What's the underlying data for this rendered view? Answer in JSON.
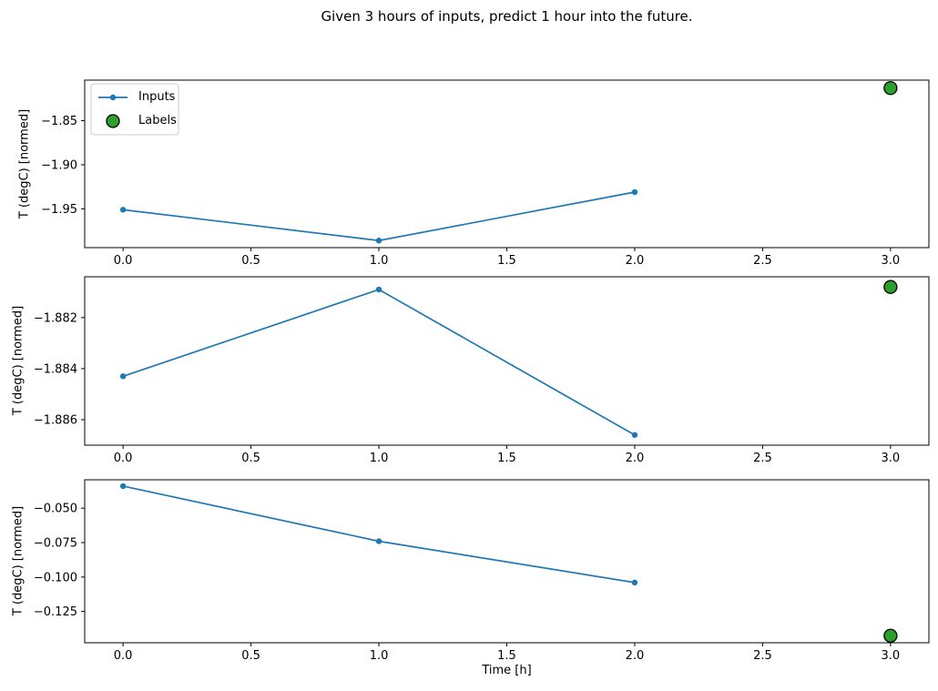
{
  "figure": {
    "title": "Given 3 hours of inputs, predict 1 hour into the future.",
    "xlabel": "Time [h]",
    "background_color": "#ffffff",
    "spine_color": "#000000",
    "text_color": "#000000"
  },
  "legend": {
    "position": "upper left",
    "border_color": "#cccccc",
    "items": [
      {
        "label": "Inputs",
        "marker": "line-with-dot",
        "color": "#1f77b4"
      },
      {
        "label": "Labels",
        "marker": "filled-circle",
        "color": "#2ca02c",
        "edge_color": "#000000"
      }
    ]
  },
  "chart_data": [
    {
      "type": "line",
      "ylabel": "T (degC) [normed]",
      "grid": false,
      "legend": true,
      "xlim": [
        -0.15,
        3.15
      ],
      "ylim": [
        -1.994,
        -1.804
      ],
      "xticks": [
        0.0,
        0.5,
        1.0,
        1.5,
        2.0,
        2.5,
        3.0
      ],
      "xtick_labels": [
        "0.0",
        "0.5",
        "1.0",
        "1.5",
        "2.0",
        "2.5",
        "3.0"
      ],
      "yticks": [
        -1.85,
        -1.9,
        -1.95
      ],
      "ytick_labels": [
        "−1.85",
        "−1.90",
        "−1.95"
      ],
      "series": [
        {
          "name": "Inputs",
          "style": "line+marker",
          "color": "#1f77b4",
          "x": [
            0.0,
            1.0,
            2.0
          ],
          "values": [
            -1.951,
            -1.986,
            -1.931
          ]
        },
        {
          "name": "Labels",
          "style": "scatter",
          "color": "#2ca02c",
          "edge_color": "#000000",
          "x": [
            3.0
          ],
          "values": [
            -1.813
          ]
        }
      ]
    },
    {
      "type": "line",
      "ylabel": "T (degC) [normed]",
      "grid": false,
      "legend": false,
      "xlim": [
        -0.15,
        3.15
      ],
      "ylim": [
        -1.887,
        -1.8804
      ],
      "xticks": [
        0.0,
        0.5,
        1.0,
        1.5,
        2.0,
        2.5,
        3.0
      ],
      "xtick_labels": [
        "0.0",
        "0.5",
        "1.0",
        "1.5",
        "2.0",
        "2.5",
        "3.0"
      ],
      "yticks": [
        -1.882,
        -1.884,
        -1.886
      ],
      "ytick_labels": [
        "−1.882",
        "−1.884",
        "−1.886"
      ],
      "series": [
        {
          "name": "Inputs",
          "style": "line+marker",
          "color": "#1f77b4",
          "x": [
            0.0,
            1.0,
            2.0
          ],
          "values": [
            -1.8843,
            -1.8809,
            -1.8866
          ]
        },
        {
          "name": "Labels",
          "style": "scatter",
          "color": "#2ca02c",
          "edge_color": "#000000",
          "x": [
            3.0
          ],
          "values": [
            -1.8808
          ]
        }
      ]
    },
    {
      "type": "line",
      "ylabel": "T (degC) [normed]",
      "xlabel": "Time [h]",
      "grid": false,
      "legend": false,
      "xlim": [
        -0.15,
        3.15
      ],
      "ylim": [
        -0.1477,
        -0.0294
      ],
      "xticks": [
        0.0,
        0.5,
        1.0,
        1.5,
        2.0,
        2.5,
        3.0
      ],
      "xtick_labels": [
        "0.0",
        "0.5",
        "1.0",
        "1.5",
        "2.0",
        "2.5",
        "3.0"
      ],
      "yticks": [
        -0.05,
        -0.075,
        -0.1,
        -0.125
      ],
      "ytick_labels": [
        "−0.050",
        "−0.075",
        "−0.100",
        "−0.125"
      ],
      "series": [
        {
          "name": "Inputs",
          "style": "line+marker",
          "color": "#1f77b4",
          "x": [
            0.0,
            1.0,
            2.0
          ],
          "values": [
            -0.034,
            -0.074,
            -0.104
          ]
        },
        {
          "name": "Labels",
          "style": "scatter",
          "color": "#2ca02c",
          "edge_color": "#000000",
          "x": [
            3.0
          ],
          "values": [
            -0.1426
          ]
        }
      ]
    }
  ]
}
